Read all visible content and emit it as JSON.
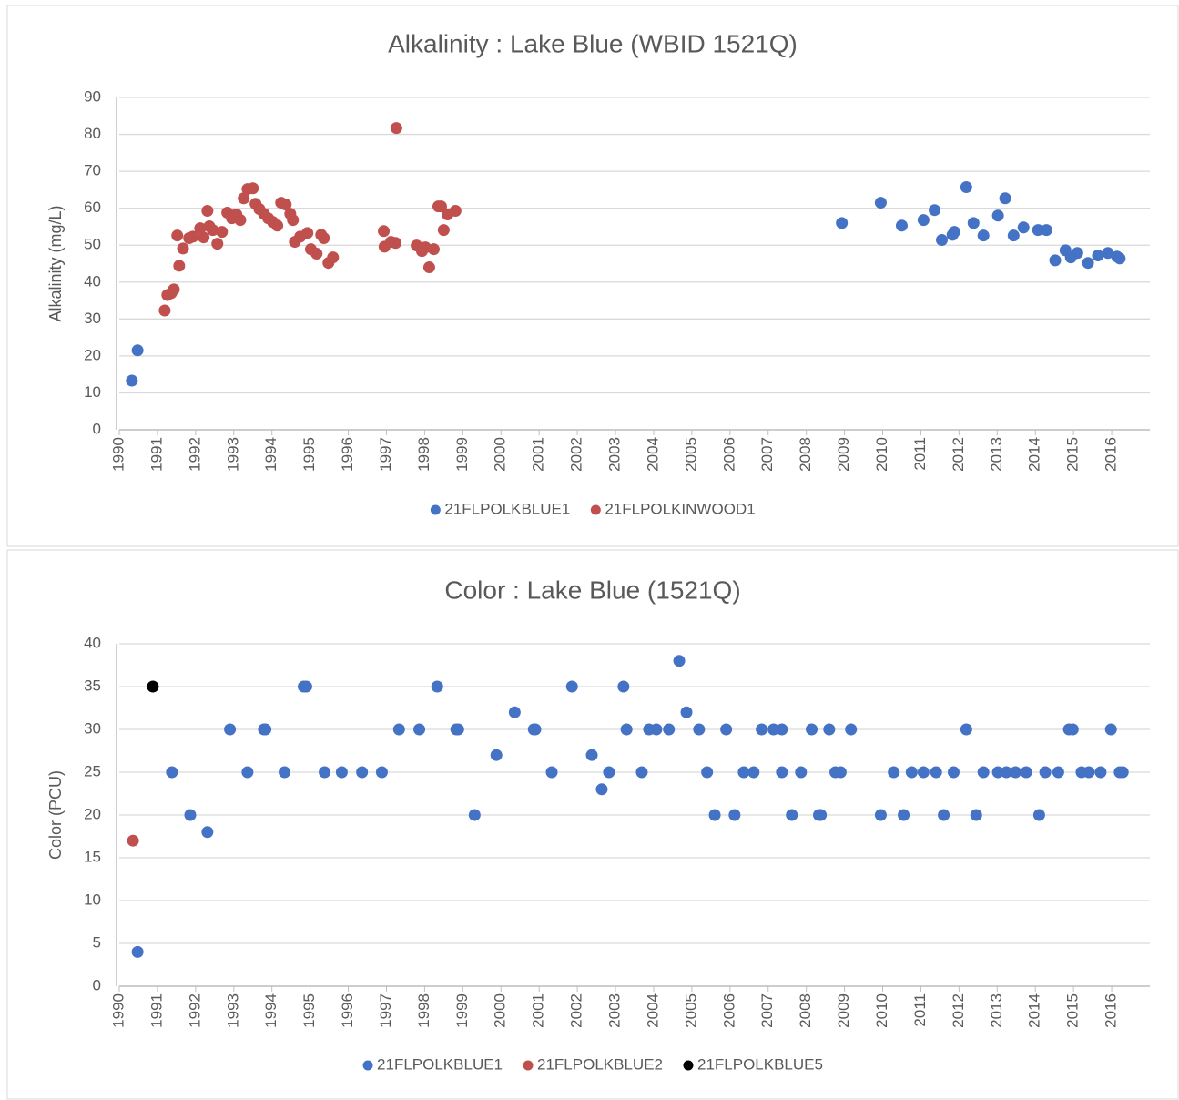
{
  "chart_data": [
    {
      "type": "scatter",
      "title": "Alkalinity : Lake Blue (WBID 1521Q)",
      "y_label": "Alkalinity (mg/L)",
      "xlim": [
        1990,
        2017
      ],
      "xticks": [
        1990,
        1991,
        1992,
        1993,
        1994,
        1995,
        1996,
        1997,
        1998,
        1999,
        2000,
        2001,
        2002,
        2003,
        2004,
        2005,
        2006,
        2007,
        2008,
        2009,
        2010,
        2011,
        2012,
        2013,
        2014,
        2015,
        2016
      ],
      "ylim": [
        0,
        90
      ],
      "yticks": [
        0,
        10,
        20,
        30,
        40,
        50,
        60,
        70,
        80,
        90
      ],
      "grid": true,
      "legend": "bottom",
      "series": [
        {
          "name": "21FLPOLKBLUE1",
          "color": "#4472c4",
          "x": [
            1990.33,
            1990.48,
            2008.93,
            2009.95,
            2010.5,
            2011.07,
            2011.36,
            2011.55,
            2011.83,
            2011.88,
            2012.19,
            2012.38,
            2012.64,
            2013.02,
            2013.21,
            2013.43,
            2013.69,
            2014.07,
            2014.29,
            2014.52,
            2014.79,
            2014.93,
            2015.1,
            2015.38,
            2015.64,
            2015.9,
            2016.14,
            2016.21
          ],
          "values": [
            13.3,
            21.5,
            56,
            61.5,
            55.3,
            56.8,
            59.5,
            51.4,
            52.8,
            53.6,
            65.7,
            56,
            52.6,
            58,
            62.7,
            52.6,
            54.8,
            54.1,
            54.1,
            45.9,
            48.6,
            46.7,
            47.9,
            45.2,
            47.2,
            47.9,
            46.9,
            46.4
          ]
        },
        {
          "name": "21FLPOLKINWOOD1",
          "color": "#c0504d",
          "x": [
            1991.19,
            1991.26,
            1991.36,
            1991.43,
            1991.52,
            1991.57,
            1991.67,
            1991.83,
            1991.93,
            1992.12,
            1992.21,
            1992.31,
            1992.36,
            1992.45,
            1992.57,
            1992.69,
            1992.83,
            1992.95,
            1993.07,
            1993.17,
            1993.26,
            1993.36,
            1993.5,
            1993.57,
            1993.67,
            1993.79,
            1993.9,
            1994.02,
            1994.14,
            1994.24,
            1994.36,
            1994.48,
            1994.55,
            1994.6,
            1994.74,
            1994.93,
            1995.02,
            1995.17,
            1995.29,
            1995.36,
            1995.48,
            1995.6,
            1996.93,
            1996.95,
            1997.12,
            1997.24,
            1997.26,
            1997.79,
            1997.93,
            1998.02,
            1998.12,
            1998.24,
            1998.36,
            1998.43,
            1998.5,
            1998.6,
            1998.81
          ],
          "values": [
            32.3,
            36.5,
            37,
            38,
            52.6,
            44.4,
            49.1,
            51.9,
            52.3,
            54.6,
            52.1,
            59.3,
            55.1,
            54.1,
            50.4,
            53.6,
            58.8,
            57.3,
            58.3,
            56.8,
            62.7,
            65.2,
            65.4,
            61.2,
            59.8,
            58.5,
            57.3,
            56.3,
            55.3,
            61.5,
            61,
            58.5,
            56.8,
            50.9,
            52.3,
            53.3,
            48.9,
            47.7,
            52.8,
            51.9,
            45.2,
            46.7,
            53.8,
            49.6,
            50.9,
            50.6,
            81.7,
            49.9,
            48.4,
            49.4,
            44,
            48.9,
            60.5,
            60.5,
            54.1,
            58.3,
            59.3
          ]
        }
      ]
    },
    {
      "type": "scatter",
      "title": "Color : Lake Blue (1521Q)",
      "y_label": "Color (PCU)",
      "xlim": [
        1990,
        2017
      ],
      "xticks": [
        1990,
        1991,
        1992,
        1993,
        1994,
        1995,
        1996,
        1997,
        1998,
        1999,
        2000,
        2001,
        2002,
        2003,
        2004,
        2005,
        2006,
        2007,
        2008,
        2009,
        2010,
        2011,
        2012,
        2013,
        2014,
        2015,
        2016
      ],
      "ylim": [
        0,
        40
      ],
      "yticks": [
        0,
        5,
        10,
        15,
        20,
        25,
        30,
        35,
        40
      ],
      "grid": true,
      "legend": "bottom",
      "series": [
        {
          "name": "21FLPOLKBLUE1",
          "color": "#4472c4",
          "x": [
            1990.48,
            1991.38,
            1991.86,
            1992.31,
            1992.9,
            1993.36,
            1993.79,
            1993.83,
            1994.33,
            1994.83,
            1994.9,
            1995.38,
            1995.83,
            1996.36,
            1996.88,
            1997.33,
            1997.86,
            1998.33,
            1998.83,
            1998.88,
            1999.31,
            1999.88,
            2000.36,
            2000.86,
            2000.9,
            2001.33,
            2001.86,
            2002.38,
            2002.64,
            2002.83,
            2003.21,
            2003.29,
            2003.69,
            2003.88,
            2004.07,
            2004.4,
            2004.67,
            2004.86,
            2005.19,
            2005.4,
            2005.6,
            2005.9,
            2006.12,
            2006.36,
            2006.62,
            2006.83,
            2007.14,
            2007.36,
            2007.36,
            2007.62,
            2007.86,
            2008.14,
            2008.33,
            2008.38,
            2008.6,
            2008.76,
            2008.9,
            2009.17,
            2009.95,
            2010.29,
            2010.55,
            2010.76,
            2011.07,
            2011.4,
            2011.6,
            2011.86,
            2012.19,
            2012.45,
            2012.64,
            2013.02,
            2013.24,
            2013.48,
            2013.76,
            2014.1,
            2014.26,
            2014.6,
            2014.88,
            2014.98,
            2015.21,
            2015.4,
            2015.71,
            2015.98,
            2016.21,
            2016.29
          ],
          "values": [
            4,
            25,
            20,
            18,
            30,
            25,
            30,
            30,
            25,
            35,
            35,
            25,
            25,
            25,
            25,
            30,
            30,
            35,
            30,
            30,
            20,
            27,
            32,
            30,
            30,
            25,
            35,
            27,
            23,
            25,
            35,
            30,
            25,
            30,
            30,
            30,
            38,
            32,
            30,
            25,
            20,
            30,
            20,
            25,
            25,
            30,
            30,
            30,
            25,
            20,
            25,
            30,
            20,
            20,
            30,
            25,
            25,
            30,
            20,
            25,
            20,
            25,
            25,
            25,
            20,
            25,
            30,
            20,
            25,
            25,
            25,
            25,
            25,
            20,
            25,
            25,
            30,
            30,
            25,
            25,
            25,
            30,
            25,
            25
          ]
        },
        {
          "name": "21FLPOLKBLUE2",
          "color": "#c0504d",
          "x": [
            1990.36
          ],
          "values": [
            17
          ]
        },
        {
          "name": "21FLPOLKBLUE5",
          "color": "#000000",
          "x": [
            1990.88
          ],
          "values": [
            35
          ]
        }
      ]
    }
  ]
}
